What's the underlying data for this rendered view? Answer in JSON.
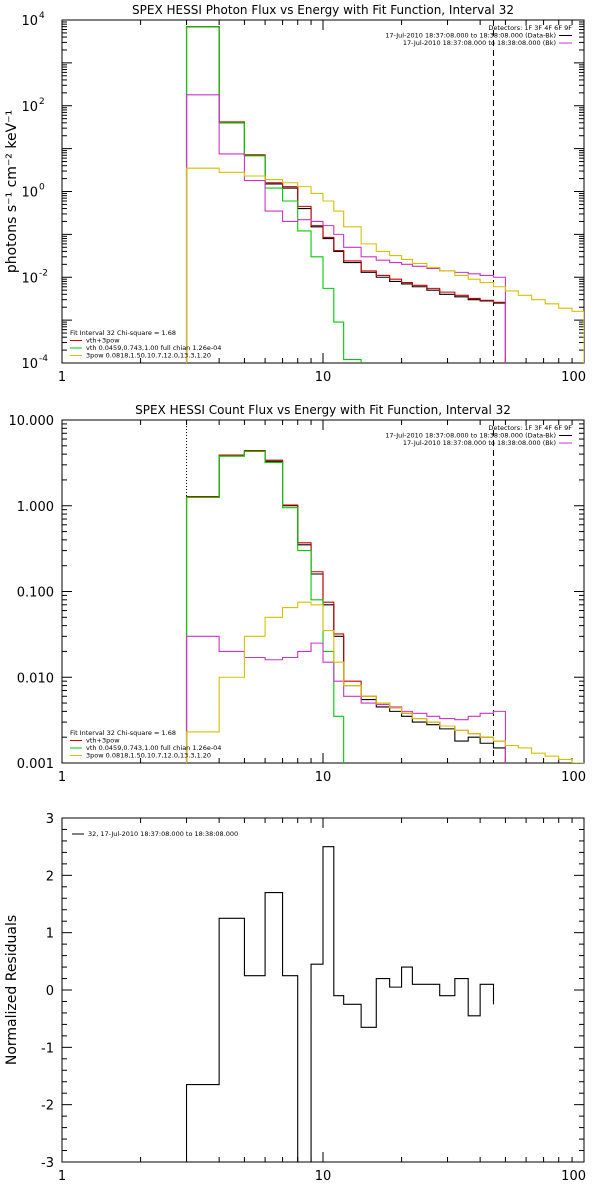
{
  "colors": {
    "black": "#000000",
    "red": "#cc0000",
    "green": "#00cc00",
    "magenta": "#cc33cc",
    "yellow": "#d8c000"
  },
  "chart_data": [
    {
      "type": "line",
      "step": true,
      "title": "SPEX HESSI Photon Flux vs Energy with Fit Function, Interval 32",
      "ylabel": "photons s⁻¹ cm⁻² keV⁻¹",
      "xlabel": "",
      "xscale": "log",
      "yscale": "log",
      "xlim": [
        1,
        100
      ],
      "ylim": [
        0.0001,
        10000
      ],
      "xticks": [
        {
          "value": 1,
          "label": "1"
        },
        {
          "value": 10,
          "label": "10"
        },
        {
          "value": 100,
          "label": "100"
        }
      ],
      "yticks": [
        {
          "value": 10000,
          "base": "10",
          "exp": "4"
        },
        {
          "value": 100,
          "base": "10",
          "exp": "2"
        },
        {
          "value": 1,
          "base": "10",
          "exp": "0"
        },
        {
          "value": 0.01,
          "base": "10",
          "exp": "-2"
        },
        {
          "value": 0.0001,
          "base": "10",
          "exp": "-4"
        }
      ],
      "vlines": [
        {
          "x": 3,
          "style": "dotted"
        },
        {
          "x": 45,
          "style": "dashed"
        }
      ],
      "legend_top": {
        "position": "top-right",
        "header": "Detectors: 1F 3F 4F 6F 9F",
        "entries": [
          {
            "text": "17-Jul-2010 18:37:08.000 to 18:38:08.000 (Data-Bk)",
            "color": "#000000"
          },
          {
            "text": "17-Jul-2010 18:37:08.000 to 18:38:08.000 (Bk)",
            "color": "#cc33cc"
          }
        ]
      },
      "legend_bottom": {
        "position": "bottom-left",
        "header": "Fit Interval 32   Chi-square = 1.68",
        "entries": [
          {
            "text": "vth+3pow",
            "color": "#cc0000"
          },
          {
            "text": "vth 0.0459,0.743,1.00  full chian 1.26e-04",
            "color": "#00cc00"
          },
          {
            "text": "3pow 0.0818,1.50,10.7,12.0,13.3,1.20",
            "color": "#d8c000"
          }
        ]
      },
      "edges": [
        3,
        4,
        5,
        6,
        7,
        8,
        9,
        10,
        11,
        12,
        14,
        16,
        18,
        20,
        22,
        25,
        28,
        32,
        36,
        40,
        45,
        50,
        56,
        63,
        71,
        80,
        90,
        100
      ],
      "series": [
        {
          "name": "Data-Bk",
          "color": "#000000",
          "values": [
            7000,
            40,
            7,
            1.5,
            1.2,
            0.4,
            0.15,
            0.08,
            0.04,
            0.022,
            0.013,
            0.01,
            0.008,
            0.007,
            0.006,
            0.005,
            0.004,
            0.0035,
            0.003,
            0.0028,
            0.0025
          ]
        },
        {
          "name": "vth+3pow",
          "color": "#cc0000",
          "values": [
            7000,
            42,
            7.2,
            1.6,
            1.3,
            0.45,
            0.16,
            0.085,
            0.042,
            0.024,
            0.014,
            0.011,
            0.009,
            0.0075,
            0.0065,
            0.0055,
            0.0045,
            0.0038,
            0.0032,
            0.0029,
            0.0026
          ]
        },
        {
          "name": "vth",
          "color": "#00cc00",
          "values": [
            7000,
            40,
            6.8,
            1.2,
            0.6,
            0.12,
            0.03,
            0.0055,
            0.0009,
            0.00012,
            5e-05
          ]
        },
        {
          "name": "Bk",
          "color": "#cc33cc",
          "values": [
            180,
            7.5,
            1.8,
            0.35,
            0.2,
            0.22,
            0.2,
            0.16,
            0.1,
            0.05,
            0.03,
            0.025,
            0.022,
            0.02,
            0.018,
            0.016,
            0.014,
            0.013,
            0.012,
            0.011,
            0.01
          ]
        },
        {
          "name": "3pow",
          "color": "#d8c000",
          "values": [
            3.5,
            2.8,
            2.3,
            1.9,
            1.6,
            1.3,
            0.9,
            0.6,
            0.35,
            0.15,
            0.06,
            0.04,
            0.032,
            0.026,
            0.021,
            0.017,
            0.014,
            0.011,
            0.009,
            0.0075,
            0.006,
            0.0048,
            0.0038,
            0.003,
            0.0024,
            0.0019,
            0.0016
          ]
        }
      ]
    },
    {
      "type": "line",
      "step": true,
      "title": "SPEX HESSI Count Flux vs Energy with Fit Function, Interval 32",
      "ylabel": "",
      "xlabel": "",
      "xscale": "log",
      "yscale": "log",
      "xlim": [
        1,
        100
      ],
      "ylim": [
        0.001,
        10
      ],
      "xticks": [
        {
          "value": 1,
          "label": "1"
        },
        {
          "value": 10,
          "label": "10"
        },
        {
          "value": 100,
          "label": "100"
        }
      ],
      "yticks": [
        {
          "value": 10,
          "label": "10.000"
        },
        {
          "value": 1,
          "label": "1.000"
        },
        {
          "value": 0.1,
          "label": "0.100"
        },
        {
          "value": 0.01,
          "label": "0.010"
        },
        {
          "value": 0.001,
          "label": "0.001"
        }
      ],
      "vlines": [
        {
          "x": 3,
          "style": "dotted"
        },
        {
          "x": 45,
          "style": "dashed"
        }
      ],
      "legend_top": {
        "position": "top-right",
        "header": "Detectors: 1F 3F 4F 6F 9F",
        "entries": [
          {
            "text": "17-Jul-2010 18:37:08.000 to 18:38:08.000 (Data-Bk)",
            "color": "#000000"
          },
          {
            "text": "17-Jul-2010 18:37:08.000 to 18:38:08.000 (Bk)",
            "color": "#cc33cc"
          }
        ]
      },
      "legend_bottom": {
        "position": "bottom-left",
        "header": "Fit Interval 32   Chi-square = 1.68",
        "entries": [
          {
            "text": "vth+3pow",
            "color": "#cc0000"
          },
          {
            "text": "vth 0.0459,0.743,1.00  full chian 1.26e-04",
            "color": "#00cc00"
          },
          {
            "text": "3pow 0.0818,1.50,10.7,12.0,13.3,1.20",
            "color": "#d8c000"
          }
        ]
      },
      "edges": [
        3,
        4,
        5,
        6,
        7,
        8,
        9,
        10,
        11,
        12,
        14,
        16,
        18,
        20,
        22,
        25,
        28,
        32,
        36,
        40,
        45,
        50,
        56,
        63,
        71,
        80,
        90,
        100
      ],
      "series": [
        {
          "name": "Data-Bk",
          "color": "#000000",
          "values": [
            1.25,
            3.8,
            4.3,
            3.3,
            1.0,
            0.35,
            0.16,
            0.07,
            0.03,
            0.008,
            0.0055,
            0.0045,
            0.004,
            0.0035,
            0.003,
            0.0028,
            0.0025,
            0.0018,
            0.002,
            0.0017,
            0.0015
          ]
        },
        {
          "name": "vth+3pow",
          "color": "#cc0000",
          "values": [
            1.28,
            3.9,
            4.4,
            3.4,
            1.02,
            0.37,
            0.17,
            0.075,
            0.032,
            0.009,
            0.006,
            0.005,
            0.0044,
            0.0038,
            0.0033,
            0.003,
            0.0027,
            0.0024,
            0.0022,
            0.002,
            0.0018
          ]
        },
        {
          "name": "vth",
          "color": "#00cc00",
          "values": [
            1.25,
            3.8,
            4.3,
            3.2,
            0.95,
            0.3,
            0.08,
            0.02,
            0.0035,
            0.0008
          ]
        },
        {
          "name": "Bk",
          "color": "#cc33cc",
          "values": [
            0.03,
            0.02,
            0.017,
            0.016,
            0.017,
            0.02,
            0.025,
            0.015,
            0.009,
            0.006,
            0.005,
            0.0048,
            0.0045,
            0.004,
            0.0038,
            0.0035,
            0.0033,
            0.0032,
            0.0035,
            0.0038,
            0.004
          ]
        },
        {
          "name": "3pow",
          "color": "#d8c000",
          "values": [
            0.0023,
            0.01,
            0.03,
            0.05,
            0.065,
            0.075,
            0.07,
            0.035,
            0.015,
            0.008,
            0.006,
            0.005,
            0.0044,
            0.0038,
            0.0033,
            0.003,
            0.0027,
            0.0024,
            0.0022,
            0.002,
            0.0018,
            0.0016,
            0.0015,
            0.0013,
            0.0012,
            0.0011,
            0.001
          ]
        }
      ]
    },
    {
      "type": "line",
      "step": true,
      "title": "",
      "ylabel": "Normalized Residuals",
      "xlabel": "",
      "xscale": "log",
      "yscale": "linear",
      "xlim": [
        1,
        100
      ],
      "ylim": [
        -3,
        3
      ],
      "xticks": [
        {
          "value": 1,
          "label": "1"
        },
        {
          "value": 10,
          "label": "10"
        },
        {
          "value": 100,
          "label": "100"
        }
      ],
      "yticks": [
        {
          "value": 3,
          "label": "3"
        },
        {
          "value": 2,
          "label": "2"
        },
        {
          "value": 1,
          "label": "1"
        },
        {
          "value": 0,
          "label": "0"
        },
        {
          "value": -1,
          "label": "-1"
        },
        {
          "value": -2,
          "label": "-2"
        },
        {
          "value": -3,
          "label": "-3"
        }
      ],
      "legend_top": {
        "position": "top-left",
        "header": "",
        "entries": [
          {
            "text": "32, 17-Jul-2010 18:37:08.000 to 18:38:08.000",
            "color": "#000000"
          }
        ]
      },
      "edges": [
        3,
        4,
        5,
        6,
        7,
        8,
        9,
        10,
        11,
        12,
        14,
        16,
        18,
        20,
        22,
        25,
        28,
        32,
        36,
        40,
        45
      ],
      "series": [
        {
          "name": "32, 17-Jul-2010 18:37:08.000 to 18:38:08.000",
          "color": "#000000",
          "values": [
            -1.65,
            1.25,
            0.25,
            1.7,
            0.25,
            -4,
            0.45,
            2.5,
            -0.1,
            -0.25,
            -0.65,
            0.2,
            0.05,
            0.4,
            0.1,
            0.1,
            -0.1,
            0.2,
            -0.45,
            0.1,
            -0.25
          ]
        }
      ]
    }
  ]
}
